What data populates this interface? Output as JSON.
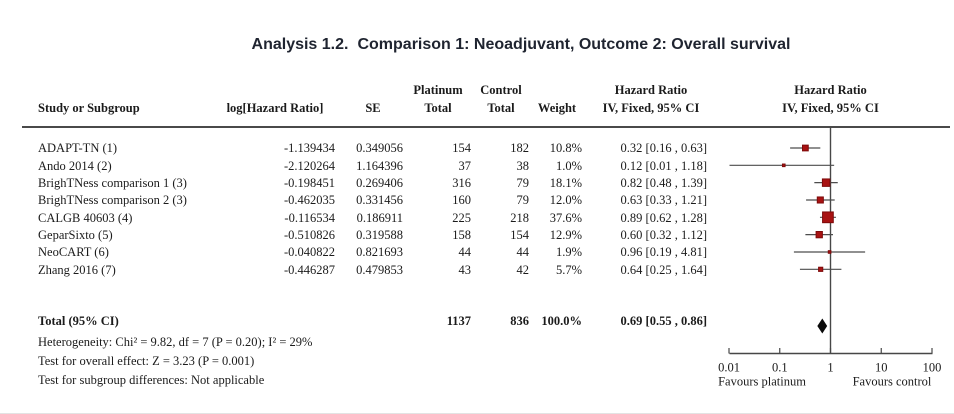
{
  "title": {
    "analysis_label": "Analysis 1.2.",
    "comparison_label": "Comparison 1: Neoadjuvant, Outcome 2: Overall survival"
  },
  "table": {
    "headers": {
      "study": "Study or Subgroup",
      "log_hr": "log[Hazard Ratio]",
      "se": "SE",
      "group1_line1": "Platinum",
      "group1_line2": "Total",
      "group2_line1": "Control",
      "group2_line2": "Total",
      "weight": "Weight",
      "effect_line1": "Hazard Ratio",
      "effect_line2": "IV, Fixed, 95% CI",
      "plot_line1": "Hazard Ratio",
      "plot_line2": "IV, Fixed, 95% CI"
    }
  },
  "chart_data": {
    "type": "forest",
    "x_scale": "log10",
    "x_range": [
      0.01,
      100
    ],
    "x_ticks": [
      0.01,
      0.1,
      1,
      10,
      100
    ],
    "x_tick_labels": [
      "0.01",
      "0.1",
      "1",
      "10",
      "100"
    ],
    "favours_left": "Favours platinum",
    "favours_right": "Favours control",
    "studies": [
      {
        "name": "ADAPT-TN (1)",
        "log_hr": "-1.139434",
        "se": "0.349056",
        "n1": "154",
        "n2": "182",
        "weight_text": "10.8%",
        "weight": 10.8,
        "ci_text": "0.32 [0.16 , 0.63]",
        "hr": 0.32,
        "lo": 0.16,
        "hi": 0.63
      },
      {
        "name": "Ando 2014 (2)",
        "log_hr": "-2.120264",
        "se": "1.164396",
        "n1": "37",
        "n2": "38",
        "weight_text": "1.0%",
        "weight": 1.0,
        "ci_text": "0.12 [0.01 , 1.18]",
        "hr": 0.12,
        "lo": 0.01,
        "hi": 1.18
      },
      {
        "name": "BrighTNess comparison 1 (3)",
        "log_hr": "-0.198451",
        "se": "0.269406",
        "n1": "316",
        "n2": "79",
        "weight_text": "18.1%",
        "weight": 18.1,
        "ci_text": "0.82 [0.48 , 1.39]",
        "hr": 0.82,
        "lo": 0.48,
        "hi": 1.39
      },
      {
        "name": "BrighTNess comparison 2 (3)",
        "log_hr": "-0.462035",
        "se": "0.331456",
        "n1": "160",
        "n2": "79",
        "weight_text": "12.0%",
        "weight": 12.0,
        "ci_text": "0.63 [0.33 , 1.21]",
        "hr": 0.63,
        "lo": 0.33,
        "hi": 1.21
      },
      {
        "name": "CALGB 40603 (4)",
        "log_hr": "-0.116534",
        "se": "0.186911",
        "n1": "225",
        "n2": "218",
        "weight_text": "37.6%",
        "weight": 37.6,
        "ci_text": "0.89 [0.62 , 1.28]",
        "hr": 0.89,
        "lo": 0.62,
        "hi": 1.28
      },
      {
        "name": "GeparSixto (5)",
        "log_hr": "-0.510826",
        "se": "0.319588",
        "n1": "158",
        "n2": "154",
        "weight_text": "12.9%",
        "weight": 12.9,
        "ci_text": "0.60 [0.32 , 1.12]",
        "hr": 0.6,
        "lo": 0.32,
        "hi": 1.12
      },
      {
        "name": "NeoCART (6)",
        "log_hr": "-0.040822",
        "se": "0.821693",
        "n1": "44",
        "n2": "44",
        "weight_text": "1.9%",
        "weight": 1.9,
        "ci_text": "0.96 [0.19 , 4.81]",
        "hr": 0.96,
        "lo": 0.19,
        "hi": 4.81
      },
      {
        "name": "Zhang 2016 (7)",
        "log_hr": "-0.446287",
        "se": "0.479853",
        "n1": "43",
        "n2": "42",
        "weight_text": "5.7%",
        "weight": 5.7,
        "ci_text": "0.64 [0.25 , 1.64]",
        "hr": 0.64,
        "lo": 0.25,
        "hi": 1.64
      }
    ],
    "total": {
      "label": "Total (95% CI)",
      "n1": "1137",
      "n2": "836",
      "weight_text": "100.0%",
      "ci_text": "0.69 [0.55 , 0.86]",
      "hr": 0.69,
      "lo": 0.55,
      "hi": 0.86
    },
    "footnotes": {
      "heterogeneity": "Heterogeneity: Chi² = 9.82, df = 7 (P = 0.20); I² = 29%",
      "overall_effect": "Test for overall effect: Z = 3.23 (P = 0.001)",
      "subgroup": "Test for subgroup differences: Not applicable"
    },
    "colors": {
      "square_fill": "#a81212",
      "square_stroke": "#7d0a0a",
      "ci_line": "#4d4d4d",
      "axis": "#474747",
      "diamond": "#0a0a0a"
    }
  }
}
